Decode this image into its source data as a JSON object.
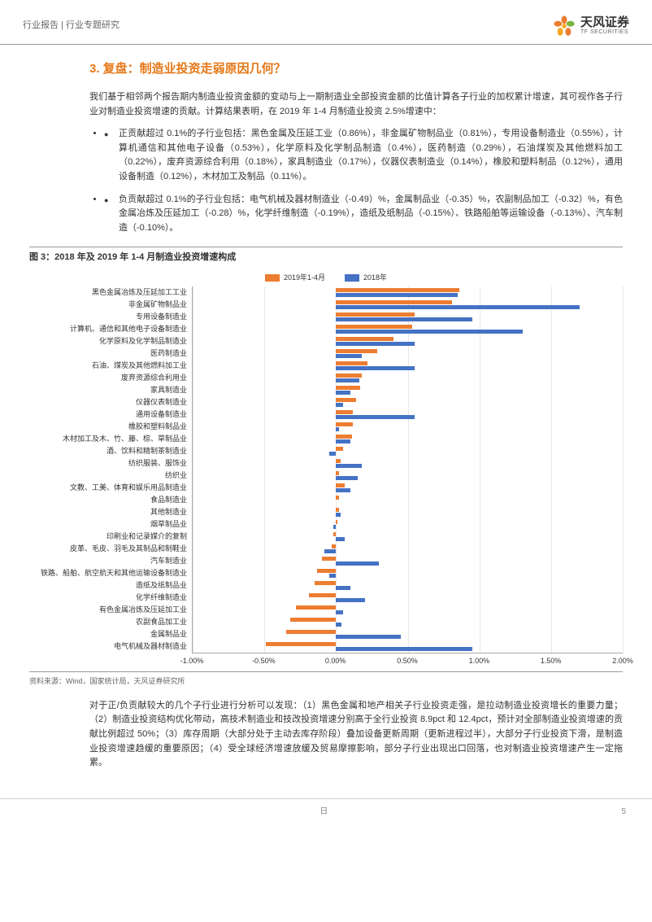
{
  "header": {
    "left": "行业报告 | 行业专题研究",
    "logo_cn": "天风证券",
    "logo_en": "TF SECURITIES"
  },
  "section_title": "3. 复盘：制造业投资走弱原因几何？",
  "intro_para": "我们基于相邻两个报告期内制造业投资金额的变动与上一期制造业全部投资金额的比值计算各子行业的加权累计增速，其可视作各子行业对制造业投资增速的贡献。计算结果表明，在 2019 年 1-4 月制造业投资 2.5%增速中：",
  "bullet1": "正贡献超过 0.1%的子行业包括：黑色金属及压延工业（0.86%），非金属矿物制品业（0.81%），专用设备制造业（0.55%），计算机通信和其他电子设备（0.53%），化学原料及化学制品制造（0.4%），医药制造（0.29%），石油煤炭及其他燃料加工（0.22%），废弃资源综合利用（0.18%），家具制造业（0.17%），仪器仪表制造业（0.14%），橡胶和塑料制品（0.12%），通用设备制造（0.12%），木材加工及制品（0.11%）。",
  "bullet2": "负贡献超过 0.1%的子行业包括：电气机械及器材制造业（-0.49）%，金属制品业（-0.35）%，农副制品加工（-0.32）%，有色金属冶炼及压延加工（-0.28）%，化学纤维制造（-0.19%），造纸及纸制品（-0.15%）、铁路船舶等运输设备（-0.13%）、汽车制造（-0.10%）。",
  "chart": {
    "title": "图 3：2018 年及 2019 年 1-4 月制造业投资增速构成",
    "legend": {
      "s2019": "2019年1-4月",
      "s2018": "2018年"
    },
    "colors": {
      "s2019": "#ed7d31",
      "s2018": "#4472c4",
      "grid": "#e8e8e8",
      "bg": "#ffffff"
    },
    "xmin": -1.0,
    "xmax": 2.0,
    "xstep": 0.5,
    "xticks": [
      "-1.00%",
      "-0.50%",
      "0.00%",
      "0.50%",
      "1.00%",
      "1.50%",
      "2.00%"
    ],
    "categories": [
      {
        "label": "黑色金属冶炼及压延加工工业",
        "v2019": 0.86,
        "v2018": 0.85
      },
      {
        "label": "非金属矿物制品业",
        "v2019": 0.81,
        "v2018": 1.7
      },
      {
        "label": "专用设备制造业",
        "v2019": 0.55,
        "v2018": 0.95
      },
      {
        "label": "计算机、通信和其他电子设备制造业",
        "v2019": 0.53,
        "v2018": 1.3
      },
      {
        "label": "化学原料及化学制品制造业",
        "v2019": 0.4,
        "v2018": 0.55
      },
      {
        "label": "医药制造业",
        "v2019": 0.29,
        "v2018": 0.18
      },
      {
        "label": "石油、煤炭及其他燃料加工业",
        "v2019": 0.22,
        "v2018": 0.55
      },
      {
        "label": "废弃资源综合利用业",
        "v2019": 0.18,
        "v2018": 0.16
      },
      {
        "label": "家具制造业",
        "v2019": 0.17,
        "v2018": 0.1
      },
      {
        "label": "仪器仪表制造业",
        "v2019": 0.14,
        "v2018": 0.05
      },
      {
        "label": "通用设备制造业",
        "v2019": 0.12,
        "v2018": 0.55
      },
      {
        "label": "橡胶和塑料制品业",
        "v2019": 0.12,
        "v2018": 0.02
      },
      {
        "label": "木材加工及木、竹、藤、棕、草制品业",
        "v2019": 0.11,
        "v2018": 0.1
      },
      {
        "label": "酒、饮料和精制茶制造业",
        "v2019": 0.05,
        "v2018": -0.05
      },
      {
        "label": "纺织服装、服饰业",
        "v2019": 0.03,
        "v2018": 0.18
      },
      {
        "label": "纺织业",
        "v2019": 0.02,
        "v2018": 0.15
      },
      {
        "label": "文教、工美、体育和娱乐用品制造业",
        "v2019": 0.06,
        "v2018": 0.1
      },
      {
        "label": "食品制造业",
        "v2019": 0.02,
        "v2018": 0.0
      },
      {
        "label": "其他制造业",
        "v2019": 0.02,
        "v2018": 0.03
      },
      {
        "label": "烟草制品业",
        "v2019": 0.01,
        "v2018": -0.02
      },
      {
        "label": "印刷业和记录媒介的复制",
        "v2019": -0.02,
        "v2018": 0.06
      },
      {
        "label": "皮革、毛皮、羽毛及其制品和制鞋业",
        "v2019": -0.03,
        "v2018": -0.08
      },
      {
        "label": "汽车制造业",
        "v2019": -0.1,
        "v2018": 0.3
      },
      {
        "label": "铁路、船舶、航空航天和其他运输设备制造业",
        "v2019": -0.13,
        "v2018": -0.05
      },
      {
        "label": "造纸及纸制品业",
        "v2019": -0.15,
        "v2018": 0.1
      },
      {
        "label": "化学纤维制造业",
        "v2019": -0.19,
        "v2018": 0.2
      },
      {
        "label": "有色金属冶炼及压延加工业",
        "v2019": -0.28,
        "v2018": 0.05
      },
      {
        "label": "农副食品加工业",
        "v2019": -0.32,
        "v2018": 0.04
      },
      {
        "label": "金属制品业",
        "v2019": -0.35,
        "v2018": 0.45
      },
      {
        "label": "电气机械及器材制造业",
        "v2019": -0.49,
        "v2018": 0.95
      }
    ],
    "source": "资料来源：Wind，国家统计局，天风证券研究所"
  },
  "closing_para": "对于正/负贡献较大的几个子行业进行分析可以发现：（1）黑色金属和地产相关子行业投资走强，是拉动制造业投资增长的重要力量；（2）制造业投资结构优化带动，高技术制造业和技改投资增速分别高于全行业投资 8.9pct 和 12.4pct，预计对全部制造业投资增速的贡献比例超过 50%；（3）库存周期（大部分处于主动去库存阶段）叠加设备更新周期（更新进程过半），大部分子行业投资下滑，是制造业投资增速趋缓的重要原因；（4）受全球经济增速放缓及贸易摩擦影响，部分子行业出现出口回落，也对制造业投资增速产生一定拖累。",
  "footer": {
    "center": "日",
    "page": "5"
  }
}
